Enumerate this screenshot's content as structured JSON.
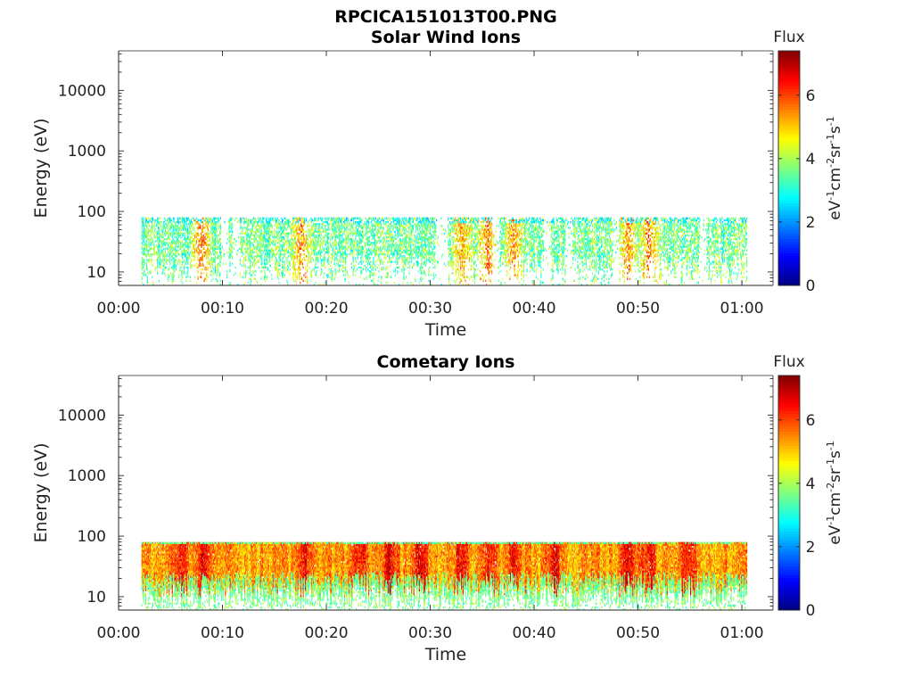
{
  "figure_title": "RPCICA151013T00.PNG",
  "colorbar_label": "Flux",
  "colorbar_unit": "eV-1cm-2sr-1s-1",
  "colormap": [
    "#00007f",
    "#0000ff",
    "#007fff",
    "#00ffff",
    "#7fff7f",
    "#ffff00",
    "#ff7f00",
    "#ff0000",
    "#7f0000"
  ],
  "chart_data": [
    {
      "type": "heatmap",
      "title": "Solar Wind Ions",
      "xlabel": "Time",
      "ylabel": "Energy (eV)",
      "x_ticks": [
        "00:00",
        "00:10",
        "00:20",
        "00:30",
        "00:40",
        "00:50",
        "01:00"
      ],
      "xlim_minutes": [
        0,
        63
      ],
      "y_scale": "log",
      "y_ticks": [
        10,
        100,
        1000,
        10000
      ],
      "y_tick_labels": [
        "10",
        "100",
        "1000",
        "10000"
      ],
      "ylim": [
        6,
        45000
      ],
      "colorbar_ticks": [
        0,
        2,
        4,
        6
      ],
      "clim": [
        0,
        7.4
      ],
      "data_time_range_minutes": [
        2.2,
        60.5
      ],
      "data_energy_range_ev": [
        6,
        80
      ],
      "typical_flux": [
        2.5,
        4.0
      ],
      "peak_flux": 5.5,
      "hot_spots_minutes": [
        8,
        17.5,
        33,
        35.5,
        38,
        49,
        51
      ],
      "gaps_minutes": [
        10.2,
        11.3,
        30.8,
        31.3,
        36.3,
        41.2,
        43.3,
        47.8,
        56.2
      ]
    },
    {
      "type": "heatmap",
      "title": "Cometary Ions",
      "xlabel": "Time",
      "ylabel": "Energy (eV)",
      "x_ticks": [
        "00:00",
        "00:10",
        "00:20",
        "00:30",
        "00:40",
        "00:50",
        "01:00"
      ],
      "xlim_minutes": [
        0,
        63
      ],
      "y_scale": "log",
      "y_ticks": [
        10,
        100,
        1000,
        10000
      ],
      "y_tick_labels": [
        "10",
        "100",
        "1000",
        "10000"
      ],
      "ylim": [
        6,
        45000
      ],
      "colorbar_ticks": [
        0,
        2,
        4,
        6
      ],
      "clim": [
        0,
        7.4
      ],
      "data_time_range_minutes": [
        2.2,
        60.5
      ],
      "data_energy_range_ev": [
        6,
        80
      ],
      "typical_flux": [
        4.5,
        5.5
      ],
      "peak_flux": 6.5,
      "hot_spots_minutes": [
        6,
        8,
        18,
        23,
        26,
        29,
        33,
        35.5,
        38,
        42,
        49,
        51,
        55
      ],
      "gaps_minutes": []
    }
  ]
}
